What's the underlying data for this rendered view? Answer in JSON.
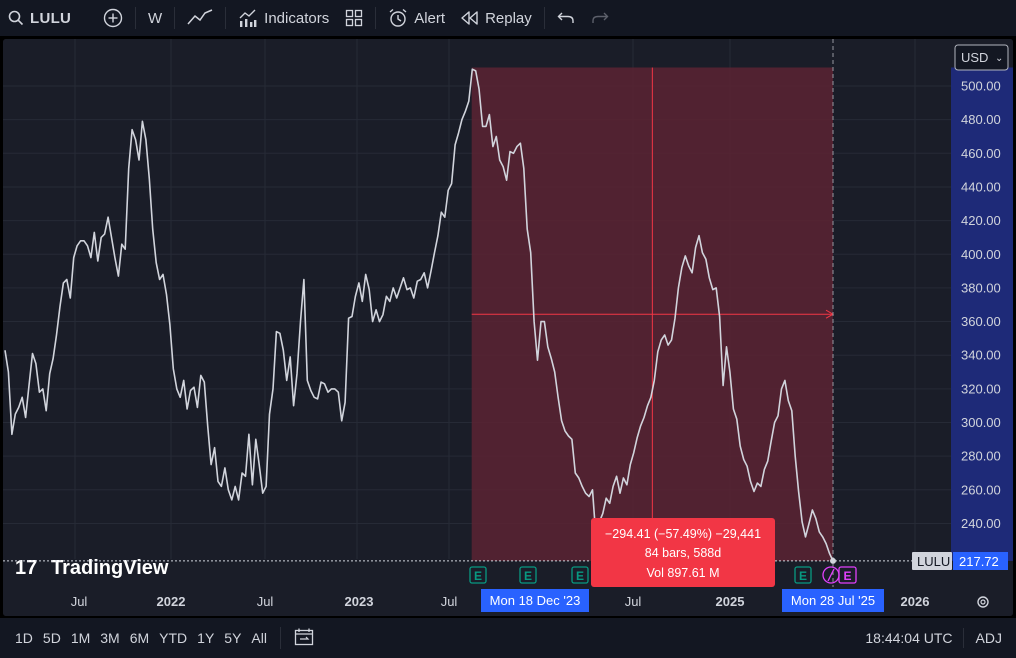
{
  "toolbar": {
    "symbol": "LULU",
    "interval": "W",
    "indicators_label": "Indicators",
    "alert_label": "Alert",
    "replay_label": "Replay"
  },
  "chart": {
    "currency": "USD",
    "symbol_tag": "LULU",
    "last_price": "217.72",
    "logo_text": "TradingView",
    "y_ticks": [
      "500.00",
      "480.00",
      "460.00",
      "440.00",
      "420.00",
      "400.00",
      "380.00",
      "360.00",
      "340.00",
      "320.00",
      "300.00",
      "280.00",
      "260.00",
      "240.00"
    ],
    "x_ticks": [
      {
        "label": "Jul",
        "bold": false
      },
      {
        "label": "2022",
        "bold": true
      },
      {
        "label": "Jul",
        "bold": false
      },
      {
        "label": "2023",
        "bold": true
      },
      {
        "label": "Jul",
        "bold": false
      },
      {
        "label": "Jul",
        "bold": false
      },
      {
        "label": "2025",
        "bold": true
      },
      {
        "label": "2026",
        "bold": true
      }
    ],
    "measure": {
      "start_date": "Mon 18 Dec '23",
      "end_date": "Mon 28 Jul '25",
      "line1": "−294.41 (−57.49%) −29,441",
      "line2": "84 bars, 588d",
      "line3": "Vol 897.61 M"
    },
    "earnings_marker": "E",
    "colors": {
      "background": "#1a1d28",
      "line": "#d1d4dc",
      "measure_fill": "#5c2333",
      "measure_line": "#f23645",
      "label_bg": "#f23645",
      "date_label_bg": "#2962ff",
      "price_scale_bg": "#1e2a78",
      "earnings": "#089981"
    }
  },
  "chart_data": {
    "type": "line",
    "symbol": "LULU",
    "interval": "W",
    "currency": "USD",
    "x_start": "2021-04",
    "x_end": "2025-07-28",
    "ylim": [
      220,
      512
    ],
    "values": [
      343,
      330,
      293,
      305,
      309,
      315,
      303,
      322,
      341,
      335,
      318,
      320,
      307,
      329,
      338,
      352,
      369,
      383,
      385,
      374,
      398,
      405,
      408,
      408,
      405,
      398,
      413,
      396,
      410,
      412,
      422,
      410,
      398,
      387,
      406,
      403,
      451,
      474,
      468,
      456,
      479,
      468,
      445,
      415,
      395,
      385,
      388,
      376,
      358,
      332,
      320,
      315,
      325,
      308,
      319,
      321,
      309,
      328,
      324,
      298,
      275,
      285,
      265,
      262,
      273,
      260,
      254,
      262,
      254,
      270,
      268,
      293,
      263,
      290,
      275,
      258,
      262,
      305,
      320,
      354,
      353,
      343,
      325,
      339,
      310,
      329,
      360,
      385,
      325,
      319,
      315,
      314,
      324,
      323,
      318,
      320,
      320,
      318,
      301,
      312,
      362,
      363,
      375,
      383,
      372,
      388,
      379,
      360,
      367,
      360,
      364,
      375,
      372,
      380,
      374,
      380,
      386,
      379,
      380,
      374,
      384,
      385,
      389,
      380,
      390,
      401,
      411,
      425,
      422,
      438,
      442,
      465,
      472,
      480,
      485,
      491,
      510,
      509,
      498,
      476,
      476,
      483,
      464,
      470,
      456,
      452,
      444,
      461,
      460,
      464,
      466,
      451,
      415,
      401,
      360,
      337,
      360,
      360,
      345,
      338,
      330,
      315,
      301,
      295,
      292,
      290,
      270,
      267,
      262,
      258,
      256,
      260,
      232,
      241,
      246,
      255,
      252,
      262,
      268,
      258,
      267,
      263,
      275,
      282,
      291,
      298,
      303,
      310,
      315,
      325,
      342,
      349,
      352,
      346,
      349,
      362,
      380,
      392,
      399,
      393,
      389,
      404,
      411,
      401,
      397,
      386,
      379,
      380,
      363,
      322,
      345,
      330,
      308,
      302,
      286,
      278,
      274,
      265,
      259,
      264,
      262,
      272,
      277,
      289,
      300,
      304,
      320,
      325,
      313,
      307,
      280,
      259,
      241,
      232,
      240,
      248,
      243,
      235,
      232,
      228,
      222,
      217.72
    ]
  }
}
